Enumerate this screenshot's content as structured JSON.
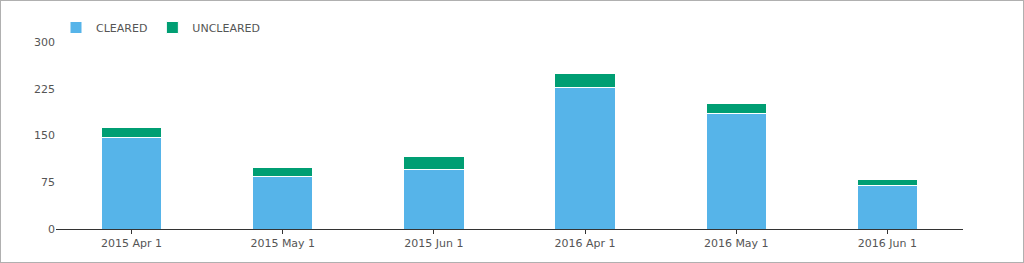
{
  "chart_data": {
    "type": "bar",
    "stacked": true,
    "categories": [
      "2015 Apr 1",
      "2015 May 1",
      "2015 Jun 1",
      "2016 Apr 1",
      "2016 May 1",
      "2016 Jun 1"
    ],
    "series": [
      {
        "name": "CLEARED",
        "color": "#56b4e9",
        "values": [
          147,
          85,
          96,
          227,
          185,
          70
        ]
      },
      {
        "name": "UNCLEARED",
        "color": "#009e73",
        "values": [
          16,
          14,
          21,
          22,
          16,
          10
        ]
      }
    ],
    "ylim": [
      0,
      300
    ],
    "yticks": [
      0,
      75,
      150,
      225,
      300
    ],
    "grid": false,
    "legend": "top-left"
  }
}
